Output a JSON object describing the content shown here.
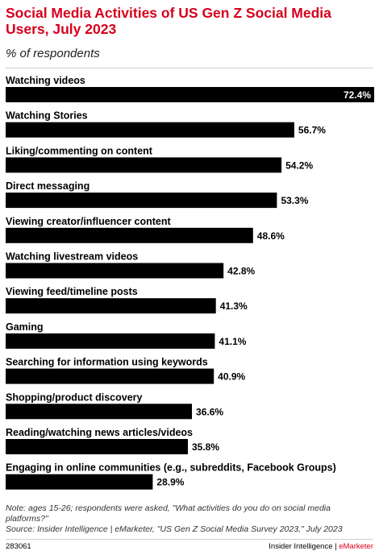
{
  "header": {
    "title": "Social Media Activities of US Gen Z Social Media Users, July 2023",
    "subtitle": "% of respondents"
  },
  "chart_data": {
    "type": "bar",
    "orientation": "horizontal",
    "categories": [
      "Watching videos",
      "Watching Stories",
      "Liking/commenting on content",
      "Direct messaging",
      "Viewing creator/influencer content",
      "Watching livestream videos",
      "Viewing feed/timeline posts",
      "Gaming",
      "Searching for information using keywords",
      "Shopping/product discovery",
      "Reading/watching news articles/videos",
      "Engaging in online communities (e.g., subreddits, Facebook Groups)"
    ],
    "values": [
      72.4,
      56.7,
      54.2,
      53.3,
      48.6,
      42.8,
      41.3,
      41.1,
      40.9,
      36.6,
      35.8,
      28.9
    ],
    "value_labels": [
      "72.4%",
      "56.7%",
      "54.2%",
      "53.3%",
      "48.6%",
      "42.8%",
      "41.3%",
      "41.1%",
      "40.9%",
      "36.6%",
      "35.8%",
      "28.9%"
    ],
    "xlim": [
      0,
      72.4
    ],
    "bar_color": "#000000",
    "title": "Social Media Activities of US Gen Z Social Media Users, July 2023",
    "subtitle": "% of respondents"
  },
  "notes": {
    "note": "Note: ages 15-26; respondents were asked, \"What activities do you do on social media platforms?\"",
    "source": "Source: Insider Intelligence | eMarketer, \"US Gen Z Social Media Survey 2023,\" July 2023"
  },
  "footer": {
    "chart_id": "283061",
    "brand_main": "Insider Intelligence",
    "brand_sep": " | ",
    "brand_accent": "eMarketer"
  },
  "colors": {
    "accent": "#d6001c",
    "bar": "#000000"
  }
}
